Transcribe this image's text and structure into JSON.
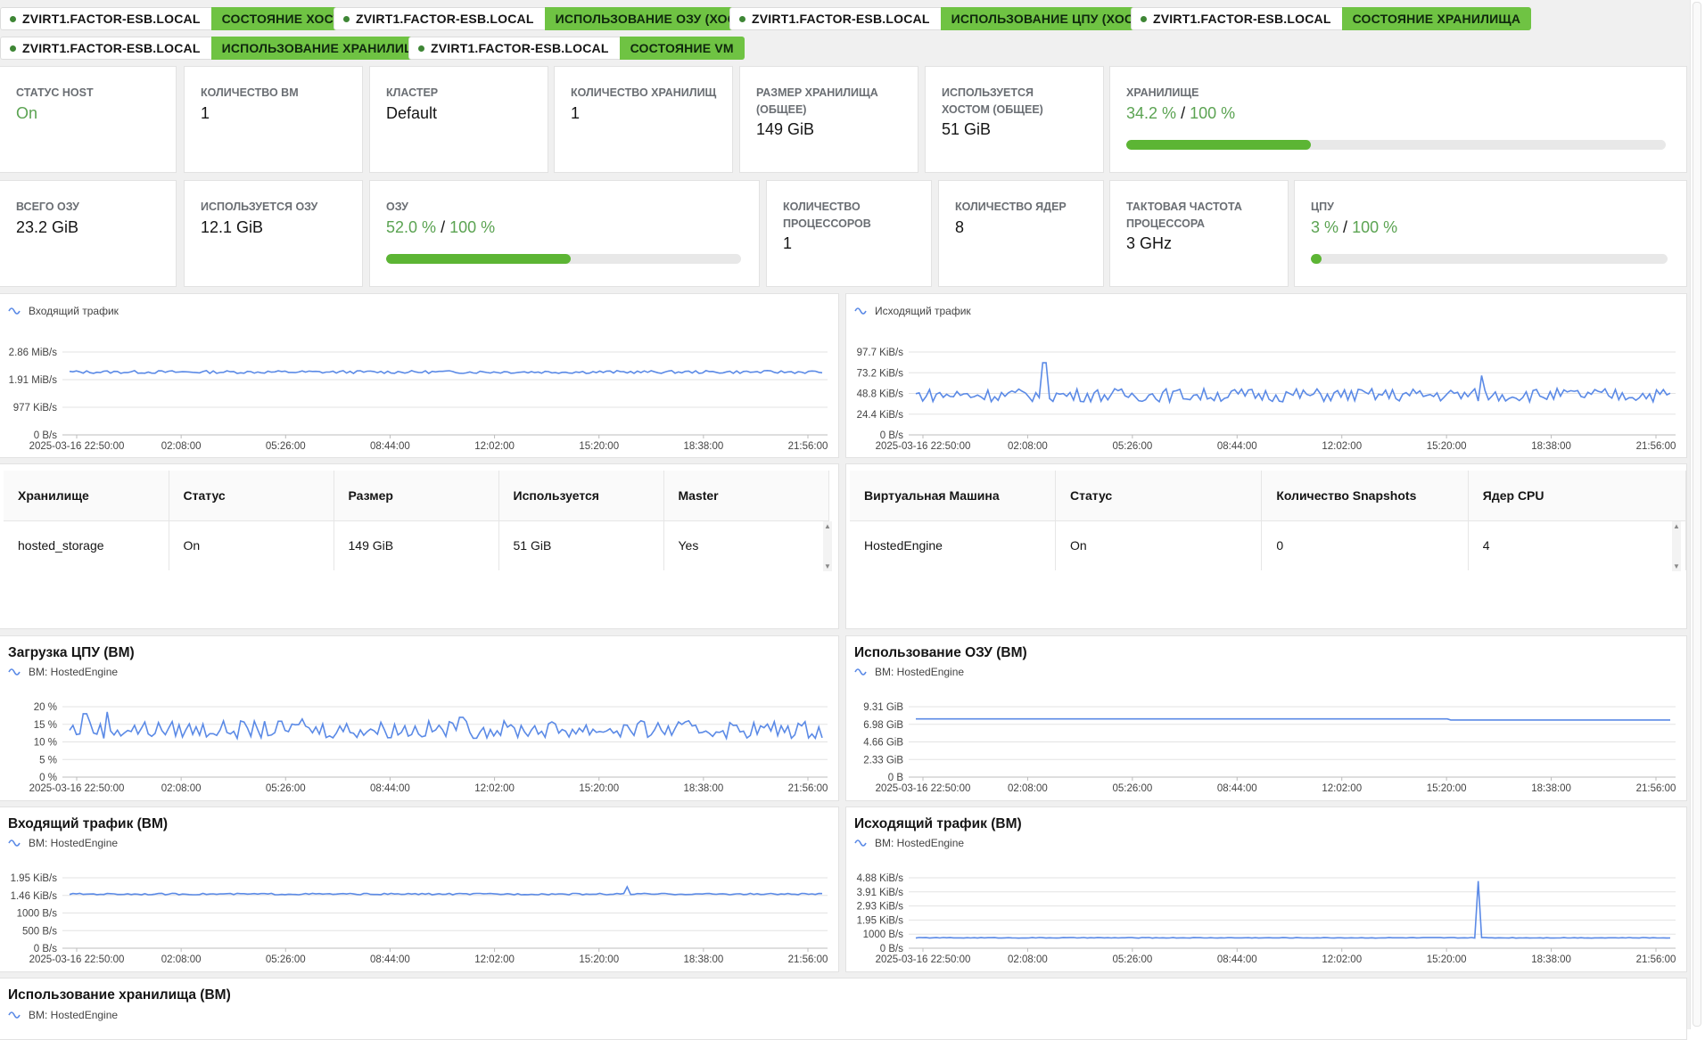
{
  "tags": [
    {
      "host": "ZVIRT1.FACTOR-ESB.LOCAL",
      "metric": "СОСТОЯНИЕ ХОСТА"
    },
    {
      "host": "ZVIRT1.FACTOR-ESB.LOCAL",
      "metric": "ИСПОЛЬЗОВАНИЕ ОЗУ (ХОСТ)"
    },
    {
      "host": "ZVIRT1.FACTOR-ESB.LOCAL",
      "metric": "ИСПОЛЬЗОВАНИЕ ЦПУ (ХОСТ)"
    },
    {
      "host": "ZVIRT1.FACTOR-ESB.LOCAL",
      "metric": "СОСТОЯНИЕ ХРАНИЛИЩА"
    },
    {
      "host": "ZVIRT1.FACTOR-ESB.LOCAL",
      "metric": "ИСПОЛЬЗОВАНИЕ ХРАНИЛИЩА"
    },
    {
      "host": "ZVIRT1.FACTOR-ESB.LOCAL",
      "metric": "СОСТОЯНИЕ VM"
    }
  ],
  "stats": {
    "host_status": {
      "label": "СТАТУС HOST",
      "value": "On"
    },
    "vm_count": {
      "label": "КОЛИЧЕСТВО ВМ",
      "value": "1"
    },
    "cluster": {
      "label": "КЛАСТЕР",
      "value": "Default"
    },
    "storage_count": {
      "label": "КОЛИЧЕСТВО ХРАНИЛИЩ",
      "value": "1"
    },
    "storage_size": {
      "label": "РАЗМЕР ХРАНИЛИЩА (ОБЩЕЕ)",
      "value": "149 GiB"
    },
    "host_used": {
      "label": "ИСПОЛЬЗУЕТСЯ ХОСТОМ (ОБЩЕЕ)",
      "value": "51 GiB"
    },
    "storage": {
      "label": "ХРАНИЛИЩЕ",
      "used": "34.2 %",
      "sep": "/",
      "total": "100 %",
      "percent": 34.2
    },
    "ram_total": {
      "label": "ВСЕГО ОЗУ",
      "value": "23.2 GiB"
    },
    "ram_used": {
      "label": "ИСПОЛЬЗУЕТСЯ ОЗУ",
      "value": "12.1 GiB"
    },
    "ram": {
      "label": "ОЗУ",
      "used": "52.0 %",
      "sep": "/",
      "total": "100 %",
      "percent": 52.0
    },
    "cpu_count": {
      "label": "КОЛИЧЕСТВО ПРОЦЕССОРОВ",
      "value": "1"
    },
    "cores": {
      "label": "КОЛИЧЕСТВО ЯДЕР",
      "value": "8"
    },
    "freq": {
      "label": "ТАКТОВАЯ ЧАСТОТА ПРОЦЕССОРА",
      "value": "3 GHz"
    },
    "cpu": {
      "label": "ЦПУ",
      "used": "3 %",
      "sep": "/",
      "total": "100 %",
      "percent": 3
    }
  },
  "storage_table": {
    "headers": [
      "Хранилище",
      "Статус",
      "Размер",
      "Используется",
      "Master"
    ],
    "rows": [
      [
        "hosted_storage",
        "On",
        "149 GiB",
        "51 GiB",
        "Yes"
      ]
    ]
  },
  "vm_table": {
    "headers": [
      "Виртуальная Машина",
      "Статус",
      "Количество Snapshots",
      "Ядер CPU"
    ],
    "rows": [
      [
        "HostedEngine",
        "On",
        "0",
        "4"
      ]
    ]
  },
  "colors": {
    "accent": "#6fc343",
    "line": "#5b8ae6",
    "ok": "#5ba352"
  },
  "bottom_title": "Использование хранилища (ВМ)",
  "bottom_legend": "ВМ: HostedEngine",
  "chart_data": [
    {
      "id": "in_traffic",
      "type": "line",
      "title": "",
      "legend": "Входящий трафик",
      "yticks": [
        "2.86  MiB/s",
        "1.91  MiB/s",
        "977  KiB/s",
        "0  B/s"
      ],
      "ylim": [
        0,
        2.86
      ],
      "yunit": "MiB/s",
      "xticks": [
        "2025-03-16 22:50:00",
        "02:08:00",
        "05:26:00",
        "08:44:00",
        "12:02:00",
        "15:20:00",
        "18:38:00",
        "21:56:00"
      ],
      "base": 2.17,
      "noise": 0.05,
      "spikes": []
    },
    {
      "id": "out_traffic",
      "type": "line",
      "title": "",
      "legend": "Исходящий трафик",
      "yticks": [
        "97.7  KiB/s",
        "73.2  KiB/s",
        "48.8  KiB/s",
        "24.4  KiB/s",
        "0  B/s"
      ],
      "ylim": [
        0,
        97.7
      ],
      "yunit": "KiB/s",
      "xticks": [
        "2025-03-16 22:50:00",
        "02:08:00",
        "05:26:00",
        "08:44:00",
        "12:02:00",
        "15:20:00",
        "18:38:00",
        "21:56:00"
      ],
      "base": 47,
      "noise": 8,
      "spikes": [
        [
          0.17,
          85
        ],
        [
          0.75,
          70
        ]
      ]
    },
    {
      "id": "vm_cpu",
      "type": "line",
      "title": "Загрузка ЦПУ (ВМ)",
      "legend": "ВМ: HostedEngine",
      "yticks": [
        "20 %",
        "15 %",
        "10 %",
        "5 %",
        "0 %"
      ],
      "ylim": [
        0,
        20
      ],
      "yunit": "%",
      "xticks": [
        "2025-03-16 22:50:00",
        "02:08:00",
        "05:26:00",
        "08:44:00",
        "12:02:00",
        "15:20:00",
        "18:38:00",
        "21:56:00"
      ],
      "base": 13.5,
      "noise": 2.5,
      "spikes": [
        [
          0.02,
          18
        ],
        [
          0.05,
          18.5
        ],
        [
          0.31,
          16.5
        ],
        [
          0.52,
          17
        ]
      ]
    },
    {
      "id": "vm_ram",
      "type": "line",
      "title": "Использование ОЗУ (ВМ)",
      "legend": "ВМ: HostedEngine",
      "yticks": [
        "9.31  GiB",
        "6.98  GiB",
        "4.66  GiB",
        "2.33  GiB",
        "0  B"
      ],
      "ylim": [
        0,
        9.31
      ],
      "yunit": "GiB",
      "xticks": [
        "2025-03-16 22:50:00",
        "02:08:00",
        "05:26:00",
        "08:44:00",
        "12:02:00",
        "15:20:00",
        "18:38:00",
        "21:56:00"
      ],
      "base": 7.7,
      "noise": 0,
      "step": [
        0.705,
        7.55
      ],
      "spikes": []
    },
    {
      "id": "vm_in",
      "type": "line",
      "title": "Входящий трафик (ВМ)",
      "legend": "ВМ: HostedEngine",
      "yticks": [
        "1.95  KiB/s",
        "1.46  KiB/s",
        "1000  B/s",
        "500  B/s",
        "0  B/s"
      ],
      "ylim": [
        0,
        1.95
      ],
      "yunit": "KiB/s",
      "xticks": [
        "2025-03-16 22:50:00",
        "02:08:00",
        "05:26:00",
        "08:44:00",
        "12:02:00",
        "15:20:00",
        "18:38:00",
        "21:56:00"
      ],
      "base": 1.5,
      "noise": 0.02,
      "spikes": [
        [
          0.74,
          1.7
        ]
      ]
    },
    {
      "id": "vm_out",
      "type": "line",
      "title": "Исходящий трафик (ВМ)",
      "legend": "ВМ: HostedEngine",
      "yticks": [
        "4.88  KiB/s",
        "3.91  KiB/s",
        "2.93  KiB/s",
        "1.95  KiB/s",
        "1000  B/s",
        "0  B/s"
      ],
      "ylim": [
        0,
        4.88
      ],
      "yunit": "KiB/s",
      "xticks": [
        "2025-03-16 22:50:00",
        "02:08:00",
        "05:26:00",
        "08:44:00",
        "12:02:00",
        "15:20:00",
        "18:38:00",
        "21:56:00"
      ],
      "base": 0.72,
      "noise": 0.02,
      "spikes": [
        [
          0.745,
          4.65
        ]
      ]
    }
  ]
}
